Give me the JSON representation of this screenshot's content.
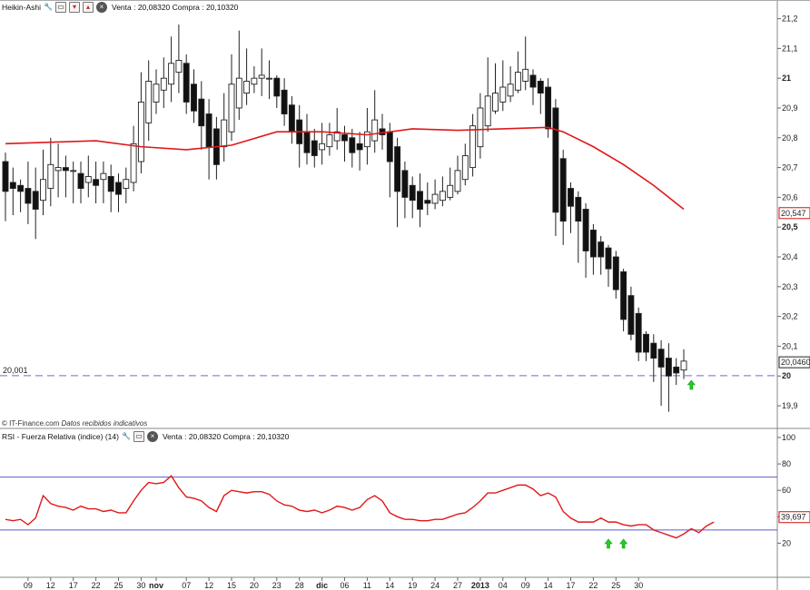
{
  "price_panel": {
    "title": "Heikin-Ashi",
    "quote": "Venta : 20,08320 Compra : 20,10320",
    "icons": [
      "wrench-icon",
      "window-icon",
      "down-icon",
      "up-icon",
      "close-icon"
    ],
    "source_label": "© IT-Finance.com",
    "source_note": "Datos recibidos indicativos",
    "level_label": "20,001",
    "last_price_label": "20,04605",
    "ma_label": "20,547"
  },
  "rsi_panel": {
    "title": "RSI - Fuerza Relativa (indice) (14)",
    "quote": "Venta : 20,08320 Compra : 20,10320",
    "icons": [
      "wrench-icon",
      "window-icon",
      "close-icon"
    ],
    "rsi_label": "39,697"
  },
  "chart_data": [
    {
      "type": "candlestick",
      "style": "Heikin-Ashi",
      "y_ticks": [
        {
          "v": 21.2,
          "label": "21,2",
          "bold": false
        },
        {
          "v": 21.1,
          "label": "21,1",
          "bold": false
        },
        {
          "v": 21.0,
          "label": "21",
          "bold": true
        },
        {
          "v": 20.9,
          "label": "20,9",
          "bold": false
        },
        {
          "v": 20.8,
          "label": "20,8",
          "bold": false
        },
        {
          "v": 20.7,
          "label": "20,7",
          "bold": false
        },
        {
          "v": 20.6,
          "label": "20,6",
          "bold": false
        },
        {
          "v": 20.5,
          "label": "20,5",
          "bold": true
        },
        {
          "v": 20.4,
          "label": "20,4",
          "bold": false
        },
        {
          "v": 20.3,
          "label": "20,3",
          "bold": false
        },
        {
          "v": 20.2,
          "label": "20,2",
          "bold": false
        },
        {
          "v": 20.1,
          "label": "20,1",
          "bold": false
        },
        {
          "v": 20.0,
          "label": "20",
          "bold": true
        },
        {
          "v": 19.9,
          "label": "19,9",
          "bold": false
        }
      ],
      "ylim": [
        19.83,
        21.22
      ],
      "horizontal_line": 20.001,
      "last_price": 20.04605,
      "moving_average_last": 20.547,
      "candles": [
        [
          20.72,
          20.62,
          20.75,
          20.52
        ],
        [
          20.65,
          20.63,
          20.7,
          20.54
        ],
        [
          20.64,
          20.62,
          20.66,
          20.55
        ],
        [
          20.63,
          20.58,
          20.72,
          20.51
        ],
        [
          20.62,
          20.56,
          20.7,
          20.46
        ],
        [
          20.59,
          20.66,
          20.76,
          20.54
        ],
        [
          20.63,
          20.71,
          20.8,
          20.57
        ],
        [
          20.69,
          20.7,
          20.78,
          20.6
        ],
        [
          20.7,
          20.69,
          20.74,
          20.6
        ],
        [
          20.69,
          20.69,
          20.72,
          20.58
        ],
        [
          20.68,
          20.63,
          20.72,
          20.58
        ],
        [
          20.65,
          20.67,
          20.74,
          20.6
        ],
        [
          20.66,
          20.64,
          20.72,
          20.58
        ],
        [
          20.66,
          20.68,
          20.72,
          20.58
        ],
        [
          20.67,
          20.62,
          20.71,
          20.55
        ],
        [
          20.65,
          20.61,
          20.68,
          20.55
        ],
        [
          20.63,
          20.66,
          20.7,
          20.58
        ],
        [
          20.65,
          20.78,
          20.84,
          20.62
        ],
        [
          20.72,
          20.92,
          21.02,
          20.68
        ],
        [
          20.85,
          20.99,
          21.06,
          20.79
        ],
        [
          20.92,
          20.98,
          21.03,
          20.88
        ],
        [
          20.96,
          21.0,
          21.07,
          20.9
        ],
        [
          20.98,
          21.05,
          21.14,
          20.92
        ],
        [
          21.02,
          21.06,
          21.18,
          20.95
        ],
        [
          21.05,
          20.92,
          21.08,
          20.88
        ],
        [
          20.98,
          20.89,
          21.03,
          20.85
        ],
        [
          20.93,
          20.84,
          20.99,
          20.76
        ],
        [
          20.88,
          20.77,
          20.93,
          20.66
        ],
        [
          20.83,
          20.71,
          20.87,
          20.66
        ],
        [
          20.77,
          20.86,
          20.95,
          20.72
        ],
        [
          20.82,
          20.98,
          21.08,
          20.79
        ],
        [
          20.9,
          21.0,
          21.16,
          20.86
        ],
        [
          20.95,
          20.99,
          21.1,
          20.91
        ],
        [
          20.98,
          21.0,
          21.04,
          20.95
        ],
        [
          21.0,
          21.01,
          21.1,
          20.94
        ],
        [
          21.0,
          21.0,
          21.06,
          20.93
        ],
        [
          21.0,
          20.94,
          21.01,
          20.9
        ],
        [
          20.96,
          20.88,
          21.0,
          20.84
        ],
        [
          20.91,
          20.82,
          20.94,
          20.78
        ],
        [
          20.86,
          20.78,
          20.91,
          20.7
        ],
        [
          20.82,
          20.75,
          20.88,
          20.71
        ],
        [
          20.79,
          20.74,
          20.83,
          20.7
        ],
        [
          20.76,
          20.78,
          20.85,
          20.71
        ],
        [
          20.77,
          20.81,
          20.85,
          20.74
        ],
        [
          20.79,
          20.82,
          20.9,
          20.76
        ],
        [
          20.81,
          20.79,
          20.84,
          20.72
        ],
        [
          20.8,
          20.75,
          20.83,
          20.7
        ],
        [
          20.78,
          20.76,
          20.82,
          20.69
        ],
        [
          20.77,
          20.82,
          20.9,
          20.71
        ],
        [
          20.79,
          20.86,
          20.96,
          20.75
        ],
        [
          20.83,
          20.81,
          20.88,
          20.76
        ],
        [
          20.82,
          20.72,
          20.85,
          20.6
        ],
        [
          20.77,
          20.62,
          20.8,
          20.5
        ],
        [
          20.69,
          20.6,
          20.72,
          20.53
        ],
        [
          20.64,
          20.59,
          20.67,
          20.53
        ],
        [
          20.62,
          20.56,
          20.68,
          20.5
        ],
        [
          20.59,
          20.58,
          20.65,
          20.54
        ],
        [
          20.58,
          20.61,
          20.66,
          20.56
        ],
        [
          20.59,
          20.62,
          20.67,
          20.57
        ],
        [
          20.6,
          20.64,
          20.7,
          20.59
        ],
        [
          20.62,
          20.69,
          20.74,
          20.61
        ],
        [
          20.66,
          20.74,
          20.78,
          20.64
        ],
        [
          20.7,
          20.84,
          20.88,
          20.67
        ],
        [
          20.77,
          20.9,
          20.95,
          20.73
        ],
        [
          20.84,
          20.94,
          21.07,
          20.82
        ],
        [
          20.89,
          20.95,
          21.05,
          20.88
        ],
        [
          20.92,
          20.97,
          21.06,
          20.89
        ],
        [
          20.94,
          20.98,
          21.04,
          20.92
        ],
        [
          20.96,
          21.02,
          21.09,
          20.95
        ],
        [
          20.99,
          21.03,
          21.14,
          20.96
        ],
        [
          21.01,
          20.97,
          21.03,
          20.91
        ],
        [
          20.99,
          20.95,
          21.0,
          20.88
        ],
        [
          20.97,
          20.83,
          21.0,
          20.8
        ],
        [
          20.9,
          20.55,
          20.93,
          20.47
        ],
        [
          20.73,
          20.52,
          20.76,
          20.44
        ],
        [
          20.63,
          20.57,
          20.65,
          20.48
        ],
        [
          20.6,
          20.52,
          20.62,
          20.38
        ],
        [
          20.56,
          20.42,
          20.58,
          20.33
        ],
        [
          20.49,
          20.4,
          20.51,
          20.34
        ],
        [
          20.45,
          20.4,
          20.47,
          20.34
        ],
        [
          20.43,
          20.36,
          20.44,
          20.3
        ],
        [
          20.4,
          20.29,
          20.42,
          20.26
        ],
        [
          20.35,
          20.19,
          20.36,
          20.15
        ],
        [
          20.27,
          20.14,
          20.3,
          20.12
        ],
        [
          20.21,
          20.08,
          20.23,
          20.05
        ],
        [
          20.14,
          20.08,
          20.15,
          20.05
        ],
        [
          20.11,
          20.06,
          20.14,
          19.98
        ],
        [
          20.09,
          20.03,
          20.12,
          19.9
        ],
        [
          20.06,
          20.0,
          20.11,
          19.88
        ],
        [
          20.03,
          20.01,
          20.06,
          19.97
        ],
        [
          20.02,
          20.05,
          20.09,
          19.99
        ]
      ],
      "moving_average": [
        [
          0,
          20.78
        ],
        [
          6,
          20.785
        ],
        [
          12,
          20.79
        ],
        [
          18,
          20.77
        ],
        [
          24,
          20.76
        ],
        [
          30,
          20.775
        ],
        [
          36,
          20.82
        ],
        [
          42,
          20.82
        ],
        [
          48,
          20.81
        ],
        [
          54,
          20.83
        ],
        [
          60,
          20.825
        ],
        [
          66,
          20.83
        ],
        [
          72,
          20.835
        ],
        [
          74,
          20.82
        ],
        [
          78,
          20.77
        ],
        [
          82,
          20.71
        ],
        [
          86,
          20.64
        ],
        [
          90,
          20.56
        ]
      ],
      "x_ticks": [
        {
          "i": 3,
          "label": "09",
          "bold": false
        },
        {
          "i": 6,
          "label": "12",
          "bold": false
        },
        {
          "i": 9,
          "label": "17",
          "bold": false
        },
        {
          "i": 12,
          "label": "22",
          "bold": false
        },
        {
          "i": 15,
          "label": "25",
          "bold": false
        },
        {
          "i": 18,
          "label": "30",
          "bold": false
        },
        {
          "i": 20,
          "label": "nov",
          "bold": true
        },
        {
          "i": 24,
          "label": "07",
          "bold": false
        },
        {
          "i": 27,
          "label": "12",
          "bold": false
        },
        {
          "i": 30,
          "label": "15",
          "bold": false
        },
        {
          "i": 33,
          "label": "20",
          "bold": false
        },
        {
          "i": 36,
          "label": "23",
          "bold": false
        },
        {
          "i": 39,
          "label": "28",
          "bold": false
        },
        {
          "i": 42,
          "label": "dic",
          "bold": true
        },
        {
          "i": 45,
          "label": "06",
          "bold": false
        },
        {
          "i": 48,
          "label": "11",
          "bold": false
        },
        {
          "i": 51,
          "label": "14",
          "bold": false
        },
        {
          "i": 54,
          "label": "19",
          "bold": false
        },
        {
          "i": 57,
          "label": "24",
          "bold": false
        },
        {
          "i": 60,
          "label": "27",
          "bold": false
        },
        {
          "i": 63,
          "label": "2013",
          "bold": true
        },
        {
          "i": 66,
          "label": "04",
          "bold": false
        },
        {
          "i": 69,
          "label": "09",
          "bold": false
        },
        {
          "i": 72,
          "label": "14",
          "bold": false
        },
        {
          "i": 75,
          "label": "17",
          "bold": false
        },
        {
          "i": 78,
          "label": "22",
          "bold": false
        },
        {
          "i": 81,
          "label": "25",
          "bold": false
        },
        {
          "i": 84,
          "label": "30",
          "bold": false
        }
      ],
      "arrows": [
        91
      ]
    },
    {
      "type": "line",
      "series": [
        {
          "name": "RSI",
          "values": [
            38,
            37,
            38,
            34,
            39,
            56,
            50,
            48,
            47,
            45,
            48,
            46,
            46,
            44,
            45,
            43,
            43,
            52,
            60,
            66,
            65,
            66,
            71,
            62,
            55,
            54,
            52,
            47,
            44,
            56,
            60,
            59,
            58,
            59,
            59,
            57,
            52,
            49,
            48,
            45,
            44,
            45,
            43,
            45,
            48,
            47,
            45,
            47,
            53,
            56,
            52,
            43,
            40,
            38,
            38,
            37,
            37,
            38,
            38,
            40,
            42,
            43,
            47,
            52,
            58,
            58,
            60,
            62,
            64,
            64,
            61,
            56,
            58,
            55,
            44,
            39,
            36,
            36,
            36,
            39,
            36,
            36,
            34,
            33,
            34,
            34,
            30,
            28,
            26,
            24,
            27,
            31,
            28,
            33,
            36
          ]
        }
      ],
      "ylim": [
        0,
        100
      ],
      "y_ticks": [
        {
          "v": 100,
          "label": "100"
        },
        {
          "v": 80,
          "label": "80"
        },
        {
          "v": 60,
          "label": "60"
        },
        {
          "v": 40,
          "label": "40"
        },
        {
          "v": 20,
          "label": "20"
        }
      ],
      "reference_lines": [
        70,
        30
      ],
      "last_value": 39.697,
      "arrows": [
        80,
        82
      ]
    }
  ]
}
